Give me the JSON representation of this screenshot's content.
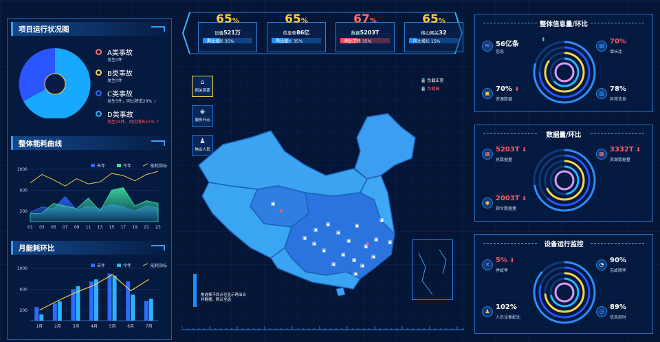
{
  "left": {
    "project_title": "项目运行状况图",
    "accidents": [
      {
        "name": "A类事故",
        "desc": "发生0件",
        "color": "#ff6b6b",
        "desc_color": "#c9dcf5",
        "arrow": ""
      },
      {
        "name": "B类事故",
        "desc": "发生0件",
        "color": "#ffd54a",
        "desc_color": "#c9dcf5",
        "arrow": ""
      },
      {
        "name": "C类事故",
        "desc": "发生5件，同比降低20%",
        "color": "#2b6bff",
        "desc_color": "#c9dcf5",
        "arrow": "↓"
      },
      {
        "name": "D类事故",
        "desc": "发生15件，同比增长15%",
        "color": "#2ab3ff",
        "desc_color": "#ff5a6a",
        "arrow": "↑"
      }
    ],
    "energy_title": "整体能耗曲线",
    "monthly_title": "月能耗环比"
  },
  "top_stats": [
    {
      "pct": "65",
      "label": "设备",
      "value": "521万",
      "bar": "同比增长 35%",
      "arrow": "↑",
      "pct_color": "#ffc83c",
      "bar_color": "#1f8fff",
      "fill": 0.35
    },
    {
      "pct": "65",
      "label": "信息条",
      "value": "86亿",
      "bar": "同比增长 35%",
      "arrow": "↑",
      "pct_color": "#ffc83c",
      "bar_color": "#1f8fff",
      "fill": 0.35
    },
    {
      "pct": "67",
      "label": "数据",
      "value": "5203T",
      "bar": "同比下降 35%",
      "arrow": "↓",
      "pct_color": "#ff6a6a",
      "bar_color": "#ff4a5a",
      "fill": 0.35
    },
    {
      "pct": "65",
      "label": "核心网关",
      "value": "32",
      "bar": "同比增长 15%",
      "arrow": "",
      "pct_color": "#ffc83c",
      "bar_color": "#1f8fff",
      "fill": 0.15
    }
  ],
  "pct_unit": "%",
  "nav": [
    {
      "label": "网关资源",
      "glyph": "⌂"
    },
    {
      "label": "服务节点",
      "glyph": "◈"
    },
    {
      "label": "物业人员",
      "glyph": "♟"
    }
  ],
  "map": {
    "legend_normal": "负载正常",
    "legend_high": "负载高",
    "slider_hint": "拖选择不同点位显示再出合并数据，默认全选"
  },
  "right": {
    "info": {
      "title": "整体信息量/环比",
      "m1_value": "56亿条",
      "m1_label": "信息",
      "m2_value": "70%",
      "m2_label": "增长比",
      "m3_value": "70%",
      "m3_label": "资源数据",
      "m4_value": "78%",
      "m4_label": "异常信息"
    },
    "data": {
      "title": "数据量/环比",
      "m1_value": "5203T",
      "m1_label": "总数据量",
      "m2_value": "3332T",
      "m2_label": "资源数据量",
      "m3_value": "2003T",
      "m3_label": "指令数据量"
    },
    "device": {
      "title": "设备运行监控",
      "m1_value": "5%",
      "m1_label": "停故率",
      "m2_value": "90%",
      "m2_label": "无故障率",
      "m3_value": "102%",
      "m3_label": "人员设备配比",
      "m4_value": "89%",
      "m4_label": "信息延时"
    }
  },
  "chart_data": [
    {
      "type": "pie",
      "title": "项目运行状况图",
      "categories": [
        "A类事故",
        "B类事故",
        "C类事故",
        "D类事故"
      ],
      "values": [
        0,
        0,
        5,
        15
      ]
    },
    {
      "type": "area",
      "title": "整体能耗曲线",
      "x": [
        "01",
        "03",
        "05",
        "07",
        "09",
        "11",
        "13",
        "15",
        "17",
        "19",
        "21",
        "23"
      ],
      "ylim": [
        0,
        1000
      ],
      "yticks": [
        200,
        600,
        1000
      ],
      "series": [
        {
          "name": "去年",
          "type": "area",
          "color": "#2a63ff",
          "values": [
            180,
            280,
            250,
            480,
            220,
            300,
            250,
            330,
            280,
            200,
            300,
            260
          ]
        },
        {
          "name": "今年",
          "type": "area",
          "color": "#3de0a0",
          "values": [
            150,
            160,
            350,
            300,
            250,
            450,
            200,
            600,
            650,
            300,
            400,
            350
          ]
        },
        {
          "name": "能耗指标",
          "type": "line",
          "color": "#f5c84a",
          "values": [
            740,
            900,
            800,
            680,
            820,
            720,
            760,
            920,
            880,
            780,
            900,
            960
          ]
        }
      ]
    },
    {
      "type": "bar",
      "title": "月能耗环比",
      "categories": [
        "1月",
        "2月",
        "3月",
        "4月",
        "5月",
        "6月",
        "7月"
      ],
      "ylim": [
        0,
        1000
      ],
      "yticks": [
        200,
        600,
        1000
      ],
      "series": [
        {
          "name": "去年",
          "type": "bar",
          "color": "#2b6bff",
          "values": [
            260,
            330,
            600,
            750,
            900,
            750,
            380
          ]
        },
        {
          "name": "今年",
          "type": "bar",
          "color": "#2ab3ff",
          "values": [
            120,
            370,
            660,
            790,
            860,
            500,
            420
          ]
        },
        {
          "name": "能耗指标",
          "type": "line",
          "color": "#f5c84a",
          "values": [
            200,
            380,
            540,
            680,
            880,
            570,
            790
          ]
        }
      ]
    }
  ]
}
